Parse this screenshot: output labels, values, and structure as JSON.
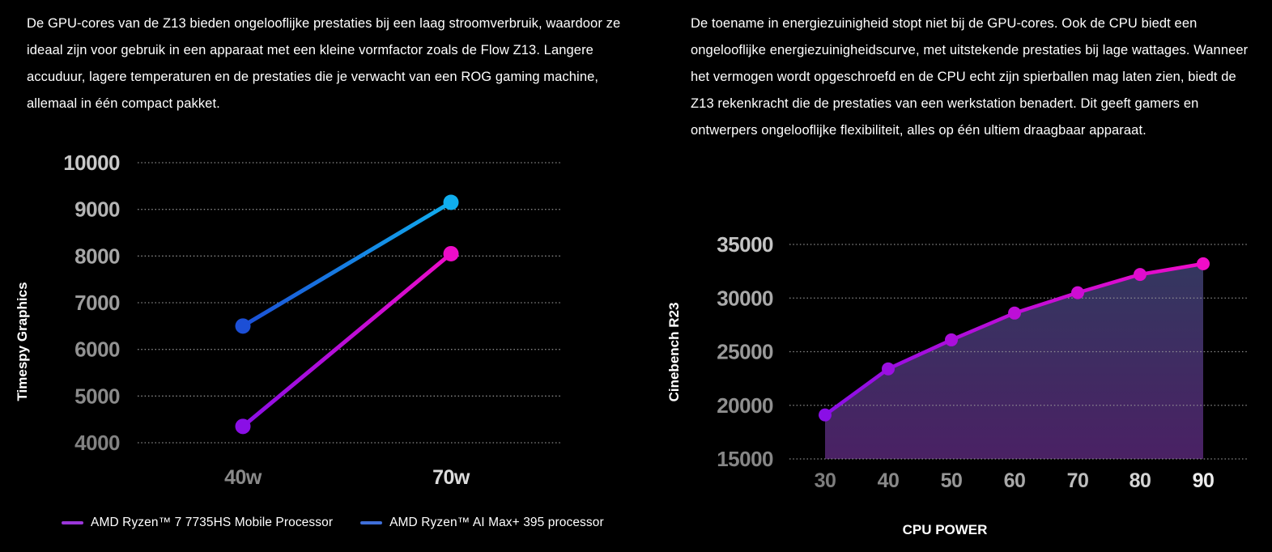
{
  "page": {
    "background": "#000000"
  },
  "left_section": {
    "paragraph": "De GPU-cores van de Z13 bieden ongelooflijke prestaties bij een laag stroomverbruik, waardoor ze ideaal zijn voor gebruik in een apparaat met een kleine vormfactor zoals de Flow Z13. Langere accuduur, lagere temperaturen en de prestaties die je verwacht van een ROG gaming machine, allemaal in één compact pakket."
  },
  "right_section": {
    "paragraph": "De toename in energiezuinigheid stopt niet bij de GPU-cores. Ook de CPU biedt een ongelooflijke energiezuinigheidscurve, met uitstekende prestaties bij lage wattages. Wanneer het vermogen wordt opgeschroefd en de CPU echt zijn spierballen mag laten zien, biedt de Z13 rekenkracht die de prestaties van een werkstation benadert. Dit geeft gamers en ontwerpers ongelooflijke flexibiliteit, alles op één ultiem draagbaar apparaat."
  },
  "chart_data": [
    {
      "id": "timespy",
      "type": "line",
      "title": "",
      "ylabel": "Timespy Graphics",
      "xlabel": "",
      "categories": [
        "40w",
        "70w"
      ],
      "x_tick_colors": [
        "#8a8a8a",
        "#dcdcdc"
      ],
      "ylim": [
        4000,
        10000
      ],
      "yticks": [
        10000,
        9000,
        8000,
        7000,
        6000,
        5000,
        4000
      ],
      "ytick_colors": [
        "#c8c8c8",
        "#b4b4b4",
        "#a6a6a6",
        "#9c9c9c",
        "#929292",
        "#8a8a8a",
        "#828282"
      ],
      "grid": "dotted",
      "legend_position": "bottom",
      "series": [
        {
          "name": "AMD Ryzen™ 7 7735HS Mobile Processor",
          "values": [
            4350,
            8050
          ],
          "line_gradient": [
            "#8a0fe6",
            "#ee0cc8"
          ],
          "legend_color": "#9a36d9"
        },
        {
          "name": "AMD Ryzen™ AI Max+ 395 processor",
          "values": [
            6500,
            9150
          ],
          "line_gradient": [
            "#1c4fd6",
            "#10aeee"
          ],
          "legend_color": "#3f6fd9"
        }
      ]
    },
    {
      "id": "cinebench",
      "type": "area",
      "title": "",
      "ylabel": "Cinebench R23",
      "xlabel": "CPU POWER",
      "x": [
        30,
        40,
        50,
        60,
        70,
        80,
        90
      ],
      "x_tick_colors": [
        "#7d7d7d",
        "#888888",
        "#979797",
        "#a8a8a8",
        "#bdbdbd",
        "#d4d4d4",
        "#ececec"
      ],
      "ylim": [
        15000,
        35000
      ],
      "yticks": [
        35000,
        30000,
        25000,
        20000,
        15000
      ],
      "ytick_colors": [
        "#c4c4c4",
        "#a9a9a9",
        "#999999",
        "#8f8f8f",
        "#868686"
      ],
      "grid": "dotted",
      "series": [
        {
          "values": [
            19100,
            23400,
            26100,
            28600,
            30500,
            32200,
            33200
          ],
          "line_gradient": [
            "#8a0fe6",
            "#f00cc8"
          ],
          "fill_gradient": [
            "#343760",
            "#4a2164"
          ]
        }
      ]
    }
  ]
}
